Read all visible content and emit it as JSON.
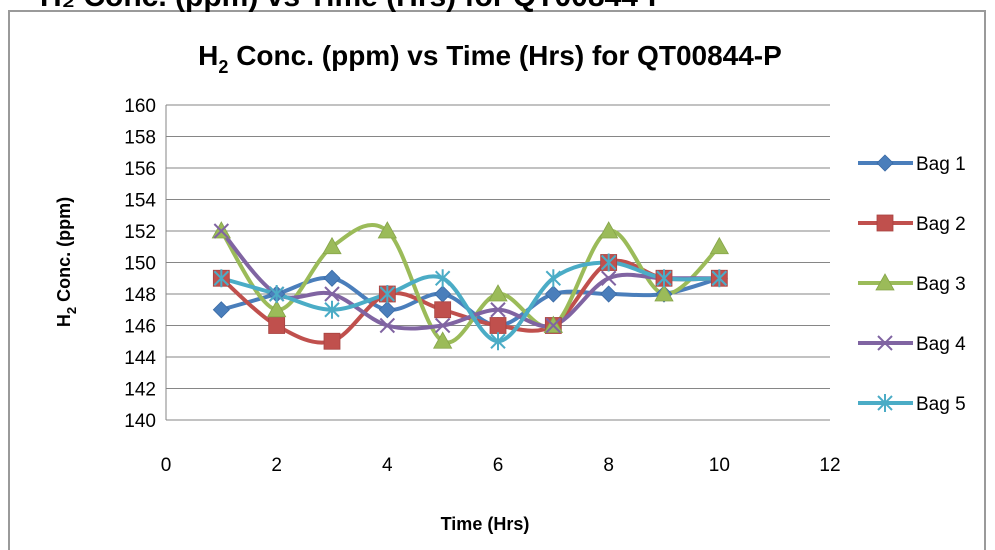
{
  "top_clip_text": "H₂ Conc. (ppm) vs Time (Hrs) for QT00844-P",
  "chart_data": {
    "type": "line",
    "title_main": "H",
    "title_sub": "2",
    "title_rest": " Conc. (ppm) vs Time (Hrs) for QT00844-P",
    "xlabel": "Time (Hrs)",
    "ylabel_main": "H",
    "ylabel_sub": "2",
    "ylabel_rest": "  Conc. (ppm)",
    "xlim": [
      0,
      12
    ],
    "ylim": [
      140,
      160
    ],
    "x_ticks": [
      0,
      2,
      4,
      6,
      8,
      10,
      12
    ],
    "y_ticks": [
      140,
      142,
      144,
      146,
      148,
      150,
      152,
      154,
      156,
      158,
      160
    ],
    "grid": "horizontal",
    "smoothed": true,
    "legend_position": "right",
    "x": [
      1,
      2,
      3,
      4,
      5,
      6,
      7,
      8,
      9,
      10
    ],
    "series": [
      {
        "name": "Bag 1",
        "color": "#4a7ebb",
        "marker": "diamond",
        "values": [
          147,
          148,
          149,
          147,
          148,
          146,
          148,
          148,
          148,
          149
        ]
      },
      {
        "name": "Bag 2",
        "color": "#c0504d",
        "marker": "square",
        "values": [
          149,
          146,
          145,
          148,
          147,
          146,
          146,
          150,
          149,
          149
        ]
      },
      {
        "name": "Bag 3",
        "color": "#9bbb59",
        "marker": "triangle",
        "values": [
          152,
          147,
          151,
          152,
          145,
          148,
          146,
          152,
          148,
          151
        ]
      },
      {
        "name": "Bag 4",
        "color": "#8064a2",
        "marker": "x",
        "values": [
          152,
          148,
          148,
          146,
          146,
          147,
          146,
          149,
          149,
          149
        ]
      },
      {
        "name": "Bag 5",
        "color": "#4bacc6",
        "marker": "star",
        "values": [
          149,
          148,
          147,
          148,
          149,
          145,
          149,
          150,
          149,
          149
        ]
      }
    ]
  }
}
